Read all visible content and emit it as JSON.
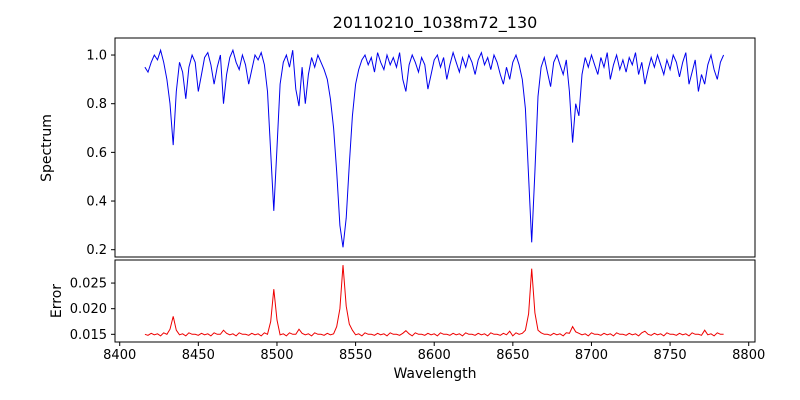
{
  "title": "20110210_1038m72_130",
  "xlabel": "Wavelength",
  "xticks": [
    8400,
    8450,
    8500,
    8550,
    8600,
    8650,
    8700,
    8750,
    8800
  ],
  "xtick_labels": [
    "8400",
    "8450",
    "8500",
    "8550",
    "8600",
    "8650",
    "8700",
    "8750",
    "8800"
  ],
  "chart_data": [
    {
      "type": "line",
      "name": "spectrum",
      "ylabel": "Spectrum",
      "color": "#0000ee",
      "xlim": [
        8397,
        8804
      ],
      "ylim": [
        0.17,
        1.07
      ],
      "yticks": [
        0.2,
        0.4,
        0.6,
        0.8,
        1.0
      ],
      "ytick_labels": [
        "0.2",
        "0.4",
        "0.6",
        "0.8",
        "1.0"
      ],
      "x_start": 8416,
      "x_step": 2,
      "values": [
        0.95,
        0.93,
        0.97,
        1.0,
        0.98,
        1.02,
        0.97,
        0.9,
        0.8,
        0.63,
        0.85,
        0.97,
        0.93,
        0.82,
        0.95,
        1.0,
        0.97,
        0.85,
        0.92,
        0.99,
        1.01,
        0.96,
        0.88,
        0.95,
        1.0,
        0.8,
        0.92,
        0.99,
        1.02,
        0.97,
        0.94,
        1.0,
        0.96,
        0.88,
        0.94,
        1.0,
        0.98,
        1.01,
        0.96,
        0.85,
        0.6,
        0.36,
        0.62,
        0.88,
        0.97,
        1.0,
        0.95,
        1.02,
        0.86,
        0.79,
        0.95,
        0.8,
        0.92,
        0.99,
        0.95,
        1.0,
        0.97,
        0.94,
        0.9,
        0.82,
        0.7,
        0.52,
        0.3,
        0.21,
        0.33,
        0.55,
        0.75,
        0.88,
        0.94,
        0.98,
        1.0,
        0.96,
        0.99,
        0.93,
        1.01,
        0.97,
        0.94,
        1.0,
        0.96,
        0.99,
        0.95,
        1.01,
        0.9,
        0.85,
        0.96,
        1.0,
        0.97,
        0.93,
        0.99,
        0.96,
        0.86,
        0.92,
        0.98,
        1.0,
        0.95,
        0.99,
        0.9,
        0.96,
        1.01,
        0.97,
        0.93,
        0.99,
        0.95,
        1.0,
        0.97,
        0.92,
        0.98,
        1.01,
        0.96,
        0.99,
        0.94,
        1.0,
        0.97,
        0.92,
        0.88,
        0.95,
        0.9,
        0.97,
        1.0,
        0.96,
        0.9,
        0.78,
        0.5,
        0.23,
        0.52,
        0.83,
        0.95,
        0.99,
        0.93,
        0.87,
        0.97,
        1.0,
        0.96,
        0.92,
        0.98,
        0.85,
        0.64,
        0.8,
        0.75,
        0.92,
        0.99,
        0.95,
        1.0,
        0.96,
        0.92,
        0.99,
        0.95,
        1.01,
        0.9,
        0.96,
        1.0,
        0.94,
        0.98,
        0.93,
        0.99,
        0.96,
        1.01,
        0.92,
        0.97,
        0.88,
        0.94,
        0.99,
        0.95,
        1.0,
        0.96,
        0.92,
        0.98,
        0.94,
        1.0,
        0.97,
        0.91,
        0.97,
        1.01,
        0.88,
        0.93,
        0.98,
        0.85,
        0.92,
        0.88,
        0.96,
        1.0,
        0.94,
        0.9,
        0.97,
        1.0
      ]
    },
    {
      "type": "line",
      "name": "error",
      "ylabel": "Error",
      "color": "#ee0000",
      "xlim": [
        8397,
        8804
      ],
      "ylim": [
        0.0135,
        0.0295
      ],
      "yticks": [
        0.015,
        0.02,
        0.025
      ],
      "ytick_labels": [
        "0.015",
        "0.020",
        "0.025"
      ],
      "x_start": 8416,
      "x_step": 2,
      "values": [
        0.015,
        0.0148,
        0.0152,
        0.0149,
        0.0151,
        0.0147,
        0.0153,
        0.015,
        0.016,
        0.0185,
        0.0158,
        0.0149,
        0.0151,
        0.0147,
        0.0153,
        0.015,
        0.015,
        0.0148,
        0.0152,
        0.0149,
        0.0151,
        0.0147,
        0.0153,
        0.015,
        0.015,
        0.0158,
        0.0152,
        0.0149,
        0.0151,
        0.0147,
        0.0153,
        0.015,
        0.015,
        0.0148,
        0.0152,
        0.0149,
        0.0151,
        0.0147,
        0.0153,
        0.015,
        0.0175,
        0.0238,
        0.0178,
        0.0149,
        0.0151,
        0.0147,
        0.0153,
        0.015,
        0.015,
        0.016,
        0.0152,
        0.0149,
        0.0151,
        0.0147,
        0.0153,
        0.015,
        0.015,
        0.0148,
        0.0152,
        0.0149,
        0.0151,
        0.0165,
        0.02,
        0.0285,
        0.0205,
        0.017,
        0.0158,
        0.0149,
        0.0151,
        0.0147,
        0.0153,
        0.015,
        0.015,
        0.0148,
        0.0152,
        0.0149,
        0.0151,
        0.0147,
        0.0153,
        0.015,
        0.015,
        0.0148,
        0.0152,
        0.0157,
        0.0151,
        0.0147,
        0.0153,
        0.015,
        0.015,
        0.0148,
        0.0152,
        0.0149,
        0.0151,
        0.0147,
        0.0153,
        0.015,
        0.015,
        0.0148,
        0.0152,
        0.0149,
        0.0151,
        0.0147,
        0.0153,
        0.015,
        0.015,
        0.0148,
        0.0152,
        0.0149,
        0.0151,
        0.0147,
        0.0153,
        0.015,
        0.015,
        0.0148,
        0.0152,
        0.0149,
        0.0156,
        0.0147,
        0.0153,
        0.015,
        0.0152,
        0.0158,
        0.019,
        0.0278,
        0.0192,
        0.0158,
        0.0153,
        0.015,
        0.015,
        0.0148,
        0.0152,
        0.0149,
        0.0151,
        0.0147,
        0.0153,
        0.0152,
        0.0165,
        0.0155,
        0.0152,
        0.0149,
        0.0151,
        0.0147,
        0.0153,
        0.015,
        0.015,
        0.0148,
        0.0152,
        0.0149,
        0.0151,
        0.0147,
        0.0153,
        0.015,
        0.015,
        0.0148,
        0.0152,
        0.0149,
        0.0151,
        0.0147,
        0.0153,
        0.0156,
        0.015,
        0.0148,
        0.0152,
        0.0149,
        0.0151,
        0.0147,
        0.0153,
        0.015,
        0.015,
        0.0148,
        0.0152,
        0.0149,
        0.0151,
        0.0147,
        0.0153,
        0.015,
        0.015,
        0.0148,
        0.0158,
        0.0149,
        0.0151,
        0.0147,
        0.0153,
        0.015,
        0.015
      ]
    }
  ]
}
